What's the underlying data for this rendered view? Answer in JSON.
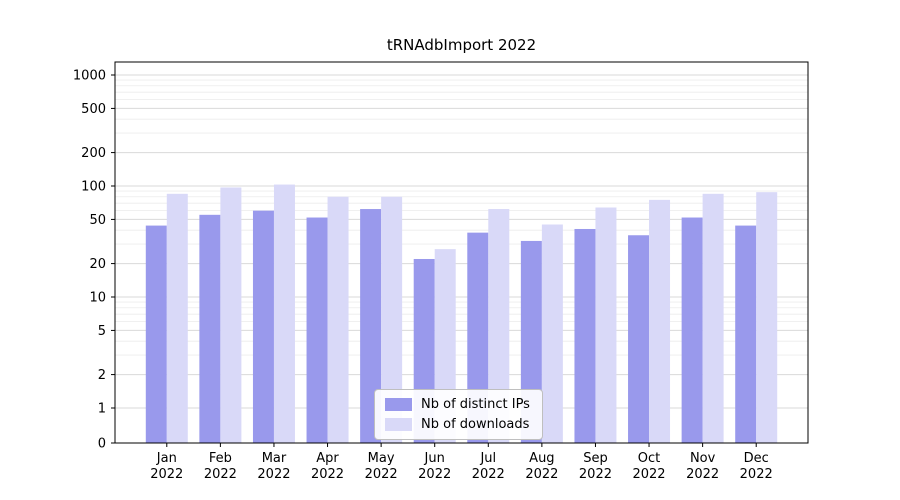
{
  "title": "tRNAdbImport 2022",
  "chart_data": {
    "type": "bar",
    "title": "tRNAdbImport 2022",
    "categories": [
      "Jan",
      "Feb",
      "Mar",
      "Apr",
      "May",
      "Jun",
      "Jul",
      "Aug",
      "Sep",
      "Oct",
      "Nov",
      "Dec"
    ],
    "year": "2022",
    "series": [
      {
        "name": "Nb of distinct IPs",
        "color": "#9999ec",
        "values": [
          44,
          55,
          60,
          52,
          62,
          22,
          38,
          32,
          41,
          36,
          52,
          44
        ]
      },
      {
        "name": "Nb of downloads",
        "color": "#d9d9f8",
        "values": [
          85,
          97,
          103,
          80,
          80,
          27,
          62,
          45,
          64,
          75,
          85,
          88
        ]
      }
    ],
    "yscale": "symlog",
    "ylim": [
      0,
      1300
    ],
    "y_ticks": [
      0,
      1,
      2,
      5,
      10,
      20,
      50,
      100,
      200,
      500,
      1000
    ],
    "y_minor_ticks": [
      3,
      4,
      6,
      7,
      8,
      9,
      30,
      40,
      60,
      70,
      80,
      90,
      300,
      400,
      600,
      700,
      800,
      900
    ],
    "grid": true,
    "legend_position": "lower center",
    "xlabel": "",
    "ylabel": ""
  },
  "legend": {
    "items": [
      {
        "label": "Nb of distinct IPs",
        "color": "#9999ec"
      },
      {
        "label": "Nb of downloads",
        "color": "#d9d9f8"
      }
    ]
  },
  "colors": {
    "major_grid": "#d9d9d9",
    "minor_grid": "#ececec",
    "axis": "#000000",
    "text": "#000000"
  }
}
